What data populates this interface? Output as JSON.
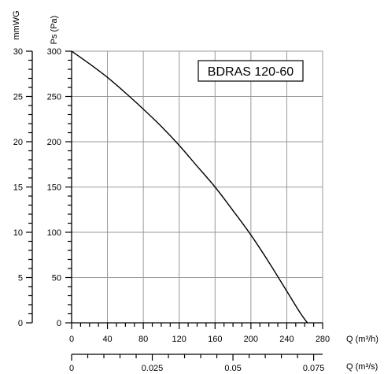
{
  "chart_data": {
    "type": "line",
    "title": "BDRAS 120-60",
    "xlabel": "Q (m³/h)",
    "xlabel_secondary": "Q (m³/s)",
    "ylabel": "Ps (Pa)",
    "ylabel_secondary": "mmWG",
    "xlim": [
      0,
      280
    ],
    "ylim": [
      0,
      300
    ],
    "x_ticks": [
      "0",
      "40",
      "80",
      "120",
      "160",
      "200",
      "240",
      "280"
    ],
    "y_ticks": [
      "0",
      "50",
      "100",
      "150",
      "200",
      "250",
      "300"
    ],
    "x2_ticks": [
      "0",
      "0.025",
      "0.05",
      "0.075"
    ],
    "y2_ticks": [
      "0",
      "5",
      "10",
      "15",
      "20",
      "25",
      "30"
    ],
    "grid": true,
    "series": [
      {
        "x": [
          0,
          20,
          40,
          60,
          80,
          100,
          120,
          140,
          160,
          180,
          200,
          220,
          240,
          255,
          263
        ],
        "y": [
          300,
          286,
          271,
          254,
          236,
          217,
          196,
          173,
          150,
          124,
          97,
          67,
          35,
          11,
          0
        ]
      }
    ]
  },
  "colors": {
    "curve": "#000000",
    "grid": "#999999",
    "axis": "#000000"
  }
}
